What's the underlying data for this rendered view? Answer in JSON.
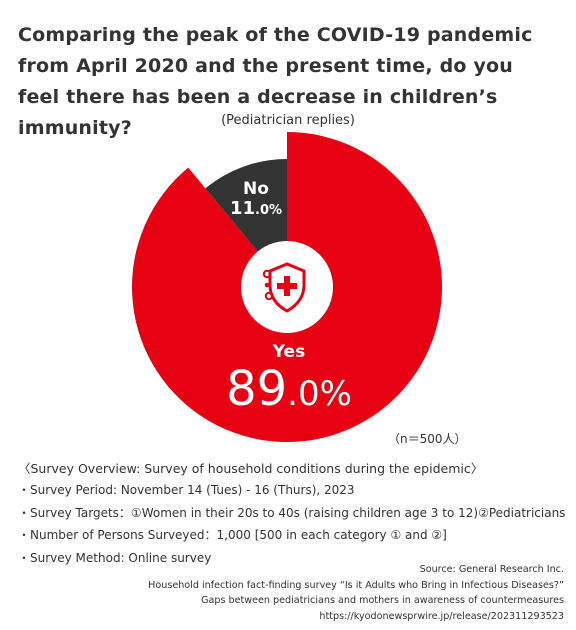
{
  "title": "Comparing the peak of the COVID-19 pandemic from April 2020 and the present time, do you feel there has been a decrease in children’s immunity?",
  "subtitle": "(Pediatrician replies)",
  "sample_size": "（n＝500人）",
  "center_icon": "shield-plus-virus-icon",
  "colors": {
    "yes": "#e60012",
    "no": "#333333",
    "icon": "#e60012"
  },
  "chart_data": {
    "type": "pie",
    "style": "donut",
    "slices": [
      {
        "label": "Yes",
        "value": 89.0,
        "int": "89",
        "dec": ".0%",
        "color": "#e60012"
      },
      {
        "label": "No",
        "value": 11.0,
        "int": "11",
        "dec": ".0%",
        "color": "#333333"
      }
    ]
  },
  "overview": {
    "heading": "〈Survey Overview: Survey of household conditions during the epidemic〉",
    "items": [
      "・Survey Period: November 14 (Tues) - 16 (Thurs), 2023",
      "・Survey Targets：①Women in their 20s to 40s (raising children age 3 to 12)②Pediatricians",
      "・Number of Persons Surveyed：1,000 [500 in each category ① and ②]",
      "・Survey Method: Online survey"
    ]
  },
  "source": {
    "lines": [
      "Source: General Research Inc.",
      "Household infection fact-finding survey “Is it Adults who Bring in Infectious Diseases?”",
      "Gaps between pediatricians and mothers in awareness of countermeasures",
      "https://kyodonewsprwire.jp/release/202311293523"
    ]
  }
}
